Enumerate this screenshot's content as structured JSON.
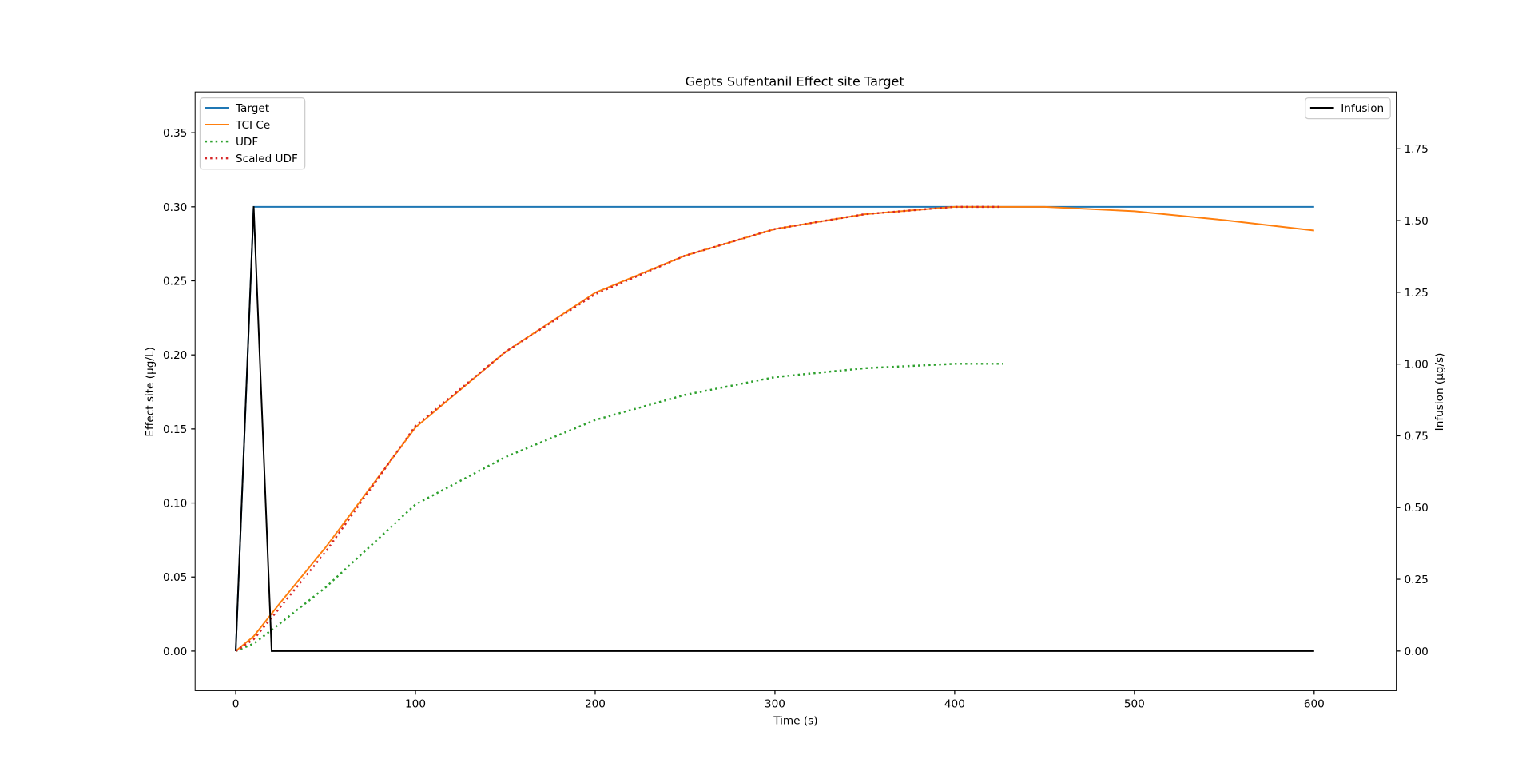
{
  "chart_data": {
    "type": "line",
    "title": "Gepts Sufentanil Effect site Target",
    "xlabel": "Time (s)",
    "ylabel": "Effect site (µg/L)",
    "y2label": "Infusion (µg/s)",
    "xlim": [
      -22.6,
      645.7
    ],
    "ylim": [
      -0.0267,
      0.3775
    ],
    "y2lim": [
      -0.138,
      1.948
    ],
    "xticks": [
      0,
      100,
      200,
      300,
      400,
      500,
      600
    ],
    "yticks": [
      {
        "value": 0,
        "label": "0.00"
      },
      {
        "value": 0.05,
        "label": "0.05"
      },
      {
        "value": 0.1,
        "label": "0.10"
      },
      {
        "value": 0.15,
        "label": "0.15"
      },
      {
        "value": 0.2,
        "label": "0.20"
      },
      {
        "value": 0.25,
        "label": "0.25"
      },
      {
        "value": 0.3,
        "label": "0.30"
      },
      {
        "value": 0.35,
        "label": "0.35"
      }
    ],
    "y2ticks": [
      {
        "value": 0,
        "label": "0.00"
      },
      {
        "value": 0.25,
        "label": "0.25"
      },
      {
        "value": 0.5,
        "label": "0.50"
      },
      {
        "value": 0.75,
        "label": "0.75"
      },
      {
        "value": 1,
        "label": "1.00"
      },
      {
        "value": 1.25,
        "label": "1.25"
      },
      {
        "value": 1.5,
        "label": "1.50"
      },
      {
        "value": 1.75,
        "label": "1.75"
      }
    ],
    "legend": "upper left",
    "legend2": "upper right",
    "series": [
      {
        "name": "Target",
        "color": "#1f77b4",
        "style": "solid",
        "x": [
          0,
          10,
          600
        ],
        "values": [
          0,
          0.3,
          0.3
        ]
      },
      {
        "name": "TCI Ce",
        "color": "#ff7f0e",
        "style": "solid",
        "x": [
          0,
          10,
          25,
          50,
          100,
          150,
          200,
          250,
          300,
          350,
          400,
          430,
          450,
          500,
          550,
          600
        ],
        "values": [
          0,
          0.01,
          0.033,
          0.07,
          0.151,
          0.202,
          0.242,
          0.267,
          0.285,
          0.295,
          0.3,
          0.3,
          0.3,
          0.297,
          0.291,
          0.284
        ]
      },
      {
        "name": "UDF",
        "color": "#2ca02c",
        "style": "dotted",
        "x": [
          0,
          10,
          25,
          50,
          100,
          150,
          200,
          250,
          300,
          350,
          400,
          427
        ],
        "values": [
          0,
          0.005,
          0.019,
          0.043,
          0.099,
          0.131,
          0.156,
          0.173,
          0.185,
          0.191,
          0.194,
          0.194
        ]
      },
      {
        "name": "Scaled UDF",
        "color": "#d62728",
        "style": "dotted",
        "x": [
          0,
          10,
          25,
          50,
          100,
          150,
          200,
          250,
          300,
          350,
          400,
          427
        ],
        "values": [
          0,
          0.008,
          0.03,
          0.067,
          0.152,
          0.202,
          0.241,
          0.267,
          0.285,
          0.295,
          0.3,
          0.3
        ]
      },
      {
        "name": "Infusion",
        "color": "#000000",
        "style": "solid",
        "axis": "y2",
        "x": [
          0,
          10,
          20,
          600
        ],
        "values": [
          0,
          1.55,
          0,
          0
        ]
      }
    ]
  }
}
